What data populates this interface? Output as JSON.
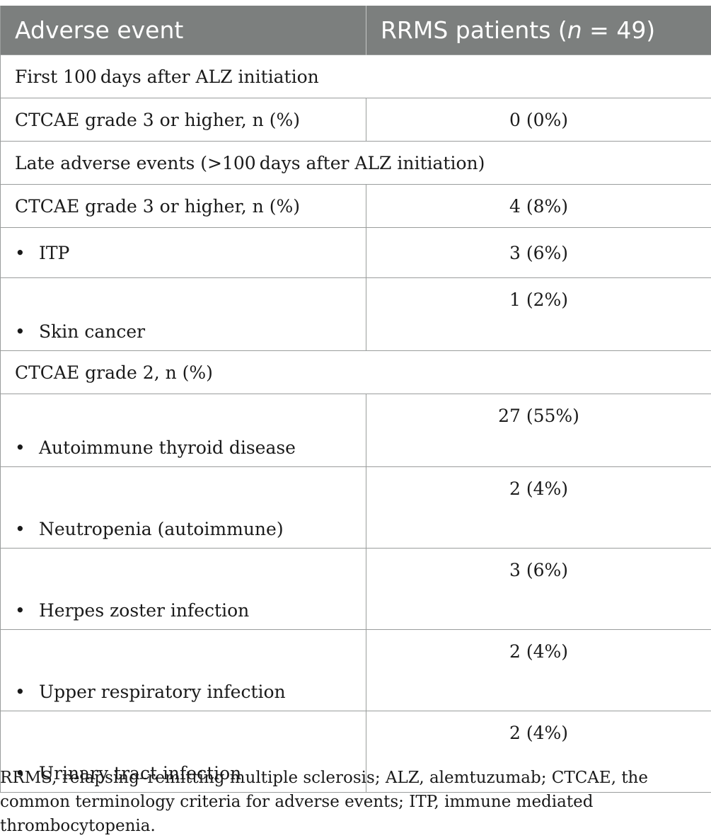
{
  "table": {
    "header": {
      "col1": "Adverse event",
      "col2_pre": "RRMS patients (",
      "col2_n": "n",
      "col2_post": " = 49)"
    },
    "rows": [
      {
        "type": "section",
        "label": "First 100 days after ALZ initiation"
      },
      {
        "type": "row",
        "label": "CTCAE grade 3 or higher, n (%)",
        "value": "0 (0%)"
      },
      {
        "type": "section",
        "label": "Late adverse events (>100 days after ALZ initiation)"
      },
      {
        "type": "row",
        "label": "CTCAE grade 3 or higher, n (%)",
        "value": "4 (8%)"
      },
      {
        "type": "bullet",
        "label": "ITP",
        "value": "3 (6%)"
      },
      {
        "type": "bullet",
        "label": "Skin cancer",
        "value": "1 (2%)"
      },
      {
        "type": "section",
        "label": "CTCAE grade 2, n (%)"
      },
      {
        "type": "bullet",
        "label": "Autoimmune thyroid disease",
        "value": "27 (55%)"
      },
      {
        "type": "bullet",
        "label": "Neutropenia (autoimmune)",
        "value": "2 (4%)"
      },
      {
        "type": "bullet",
        "label": "Herpes zoster infection",
        "value": "3 (6%)"
      },
      {
        "type": "bullet",
        "label": "Upper respiratory infection",
        "value": "2 (4%)"
      },
      {
        "type": "bullet",
        "label": "Urinary tract infection",
        "value": "2 (4%)"
      }
    ],
    "bullet_glyph": "•"
  },
  "footnote": "RRMS, relapsing–remitting multiple sclerosis; ALZ, alemtuzumab; CTCAE, the common terminology criteria for adverse events; ITP, immune mediated thrombocytopenia."
}
